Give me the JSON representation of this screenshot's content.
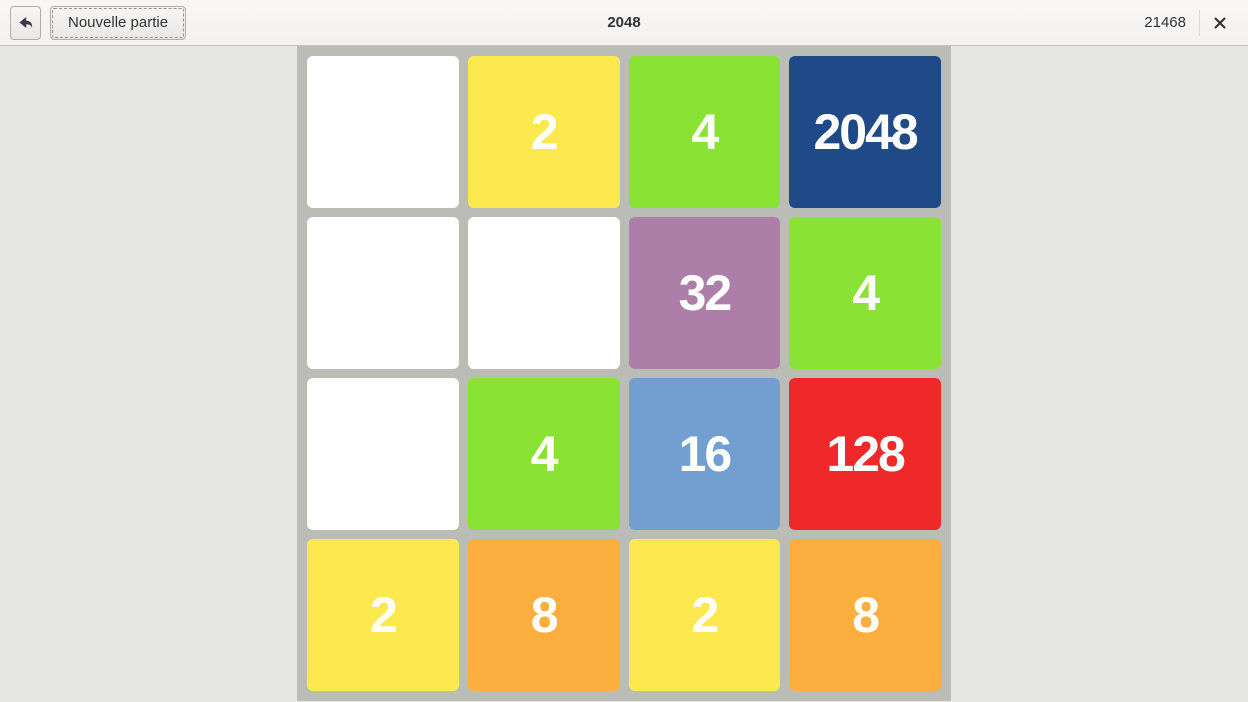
{
  "header": {
    "title": "2048",
    "score": "21468",
    "new_game_label": "Nouvelle partie",
    "undo_icon": "undo-arrow",
    "close_icon": "close-x"
  },
  "board": {
    "rows": 4,
    "cols": 4,
    "grid": [
      [
        null,
        2,
        4,
        2048
      ],
      [
        null,
        null,
        32,
        4
      ],
      [
        null,
        4,
        16,
        128
      ],
      [
        2,
        8,
        2,
        8
      ]
    ],
    "colors": {
      "board_background": "#babdb6",
      "empty_tile": "#ffffff",
      "tile_text": "#ffffff",
      "tiles": {
        "2": "#fce94f",
        "4": "#8ae234",
        "8": "#fcaf3e",
        "16": "#729fcf",
        "32": "#ad7fa8",
        "128": "#ef2929",
        "2048": "#204a87"
      }
    }
  }
}
